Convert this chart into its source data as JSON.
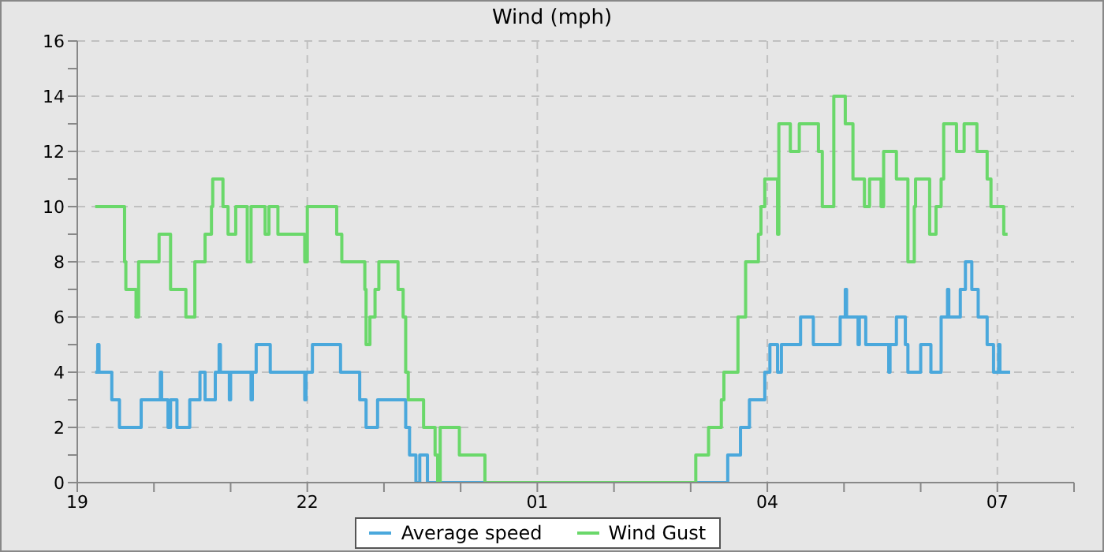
{
  "chart_data": {
    "type": "step",
    "title": "Wind (mph)",
    "xlim": [
      "--01-01T19:00",
      "--01-02T08:00"
    ],
    "xticks": [
      {
        "value": "--01-01T19:00",
        "label": "19"
      },
      {
        "value": "--01-01T20:00",
        "label": null
      },
      {
        "value": "--01-01T21:00",
        "label": null
      },
      {
        "value": "--01-01T22:00",
        "label": "22"
      },
      {
        "value": "--01-01T23:00",
        "label": null
      },
      {
        "value": "--01-02T00:00",
        "label": null
      },
      {
        "value": "--01-02T01:00",
        "label": "01"
      },
      {
        "value": "--01-02T02:00",
        "label": null
      },
      {
        "value": "--01-02T03:00",
        "label": null
      },
      {
        "value": "--01-02T04:00",
        "label": "04"
      },
      {
        "value": "--01-02T05:00",
        "label": null
      },
      {
        "value": "--01-02T06:00",
        "label": null
      },
      {
        "value": "--01-02T07:00",
        "label": "07"
      },
      {
        "value": "--01-02T08:00",
        "label": null
      }
    ],
    "ylim": [
      0,
      16
    ],
    "yticks": [
      0,
      {
        "value": 1,
        "label": null
      },
      2,
      {
        "value": 3,
        "label": null
      },
      4,
      {
        "value": 5,
        "label": null
      },
      6,
      {
        "value": 7,
        "label": null
      },
      8,
      {
        "value": 9,
        "label": null
      },
      10,
      {
        "value": 11,
        "label": null
      },
      12,
      {
        "value": 13,
        "label": null
      },
      14,
      {
        "value": 15,
        "label": null
      },
      16
    ],
    "grid": true,
    "legend": "bottom",
    "series": [
      {
        "name": "Average speed",
        "color": "#4aa8dc",
        "x": [
          "--01-01T19:14",
          "--01-01T19:16",
          "--01-01T19:17",
          "--01-01T19:27",
          "--01-01T19:33",
          "--01-01T19:50",
          "--01-01T20:05",
          "--01-01T20:06",
          "--01-01T20:11",
          "--01-01T20:13",
          "--01-01T20:18",
          "--01-01T20:28",
          "--01-01T20:36",
          "--01-01T20:40",
          "--01-01T20:48",
          "--01-01T20:51",
          "--01-01T20:52",
          "--01-01T20:59",
          "--01-01T21:00",
          "--01-01T21:16",
          "--01-01T21:17",
          "--01-01T21:20",
          "--01-01T21:31",
          "--01-01T21:58",
          "--01-01T21:59",
          "--01-01T22:04",
          "--01-01T22:26",
          "--01-01T22:41",
          "--01-01T22:46",
          "--01-01T22:55",
          "--01-01T23:17",
          "--01-01T23:20",
          "--01-01T23:25",
          "--01-01T23:28",
          "--01-01T23:34",
          "--01-02T03:29",
          "--01-02T03:39",
          "--01-02T03:46",
          "--01-02T03:58",
          "--01-02T04:02",
          "--01-02T04:08",
          "--01-02T04:11",
          "--01-02T04:26",
          "--01-02T04:36",
          "--01-02T04:57",
          "--01-02T05:01",
          "--01-02T05:02",
          "--01-02T05:11",
          "--01-02T05:12",
          "--01-02T05:17",
          "--01-02T05:35",
          "--01-02T05:36",
          "--01-02T05:41",
          "--01-02T05:48",
          "--01-02T05:50",
          "--01-02T06:00",
          "--01-02T06:08",
          "--01-02T06:16",
          "--01-02T06:21",
          "--01-02T06:22",
          "--01-02T06:31",
          "--01-02T06:35",
          "--01-02T06:40",
          "--01-02T06:45",
          "--01-02T06:52",
          "--01-02T06:57",
          "--01-02T07:01",
          "--01-02T07:02",
          "--01-02T07:10"
        ],
        "values": [
          4,
          5,
          4,
          3,
          2,
          3,
          4,
          3,
          2,
          3,
          2,
          3,
          4,
          3,
          4,
          5,
          4,
          3,
          4,
          3,
          4,
          5,
          4,
          3,
          4,
          5,
          4,
          3,
          2,
          3,
          2,
          1,
          0,
          1,
          0,
          1,
          2,
          3,
          4,
          5,
          4,
          5,
          6,
          5,
          6,
          7,
          6,
          5,
          6,
          5,
          4,
          5,
          6,
          5,
          4,
          5,
          4,
          6,
          7,
          6,
          7,
          8,
          7,
          6,
          5,
          4,
          5,
          4,
          4
        ]
      },
      {
        "name": "Wind Gust",
        "color": "#6ad86a",
        "x": [
          "--01-01T19:14",
          "--01-01T19:37",
          "--01-01T19:38",
          "--01-01T19:46",
          "--01-01T19:48",
          "--01-01T20:04",
          "--01-01T20:13",
          "--01-01T20:25",
          "--01-01T20:32",
          "--01-01T20:40",
          "--01-01T20:45",
          "--01-01T20:46",
          "--01-01T20:54",
          "--01-01T20:58",
          "--01-01T21:04",
          "--01-01T21:13",
          "--01-01T21:16",
          "--01-01T21:27",
          "--01-01T21:30",
          "--01-01T21:37",
          "--01-01T21:58",
          "--01-01T22:00",
          "--01-01T22:23",
          "--01-01T22:27",
          "--01-01T22:45",
          "--01-01T22:46",
          "--01-01T22:49",
          "--01-01T22:53",
          "--01-01T22:56",
          "--01-01T23:11",
          "--01-01T23:15",
          "--01-01T23:17",
          "--01-01T23:19",
          "--01-01T23:31",
          "--01-01T23:40",
          "--01-01T23:42",
          "--01-01T23:44",
          "--01-01T23:59",
          "--01-02T00:19",
          "--01-02T03:04",
          "--01-02T03:14",
          "--01-02T03:24",
          "--01-02T03:26",
          "--01-02T03:37",
          "--01-02T03:43",
          "--01-02T03:53",
          "--01-02T03:55",
          "--01-02T03:58",
          "--01-02T04:08",
          "--01-02T04:09",
          "--01-02T04:18",
          "--01-02T04:25",
          "--01-02T04:40",
          "--01-02T04:43",
          "--01-02T04:52",
          "--01-02T05:01",
          "--01-02T05:07",
          "--01-02T05:16",
          "--01-02T05:20",
          "--01-02T05:29",
          "--01-02T05:31",
          "--01-02T05:41",
          "--01-02T05:50",
          "--01-02T05:55",
          "--01-02T05:56",
          "--01-02T06:07",
          "--01-02T06:12",
          "--01-02T06:16",
          "--01-02T06:18",
          "--01-02T06:28",
          "--01-02T06:34",
          "--01-02T06:44",
          "--01-02T06:52",
          "--01-02T06:55",
          "--01-02T07:05",
          "--01-02T07:08"
        ],
        "values": [
          10,
          8,
          7,
          6,
          8,
          9,
          7,
          6,
          8,
          9,
          10,
          11,
          10,
          9,
          10,
          8,
          10,
          9,
          10,
          9,
          8,
          10,
          9,
          8,
          7,
          5,
          6,
          7,
          8,
          7,
          6,
          4,
          3,
          2,
          1,
          0,
          2,
          1,
          0,
          1,
          2,
          3,
          4,
          6,
          8,
          9,
          10,
          11,
          9,
          13,
          12,
          13,
          12,
          10,
          14,
          13,
          11,
          10,
          11,
          10,
          12,
          11,
          8,
          10,
          11,
          9,
          10,
          11,
          13,
          12,
          13,
          12,
          11,
          10,
          9,
          9
        ]
      }
    ]
  }
}
